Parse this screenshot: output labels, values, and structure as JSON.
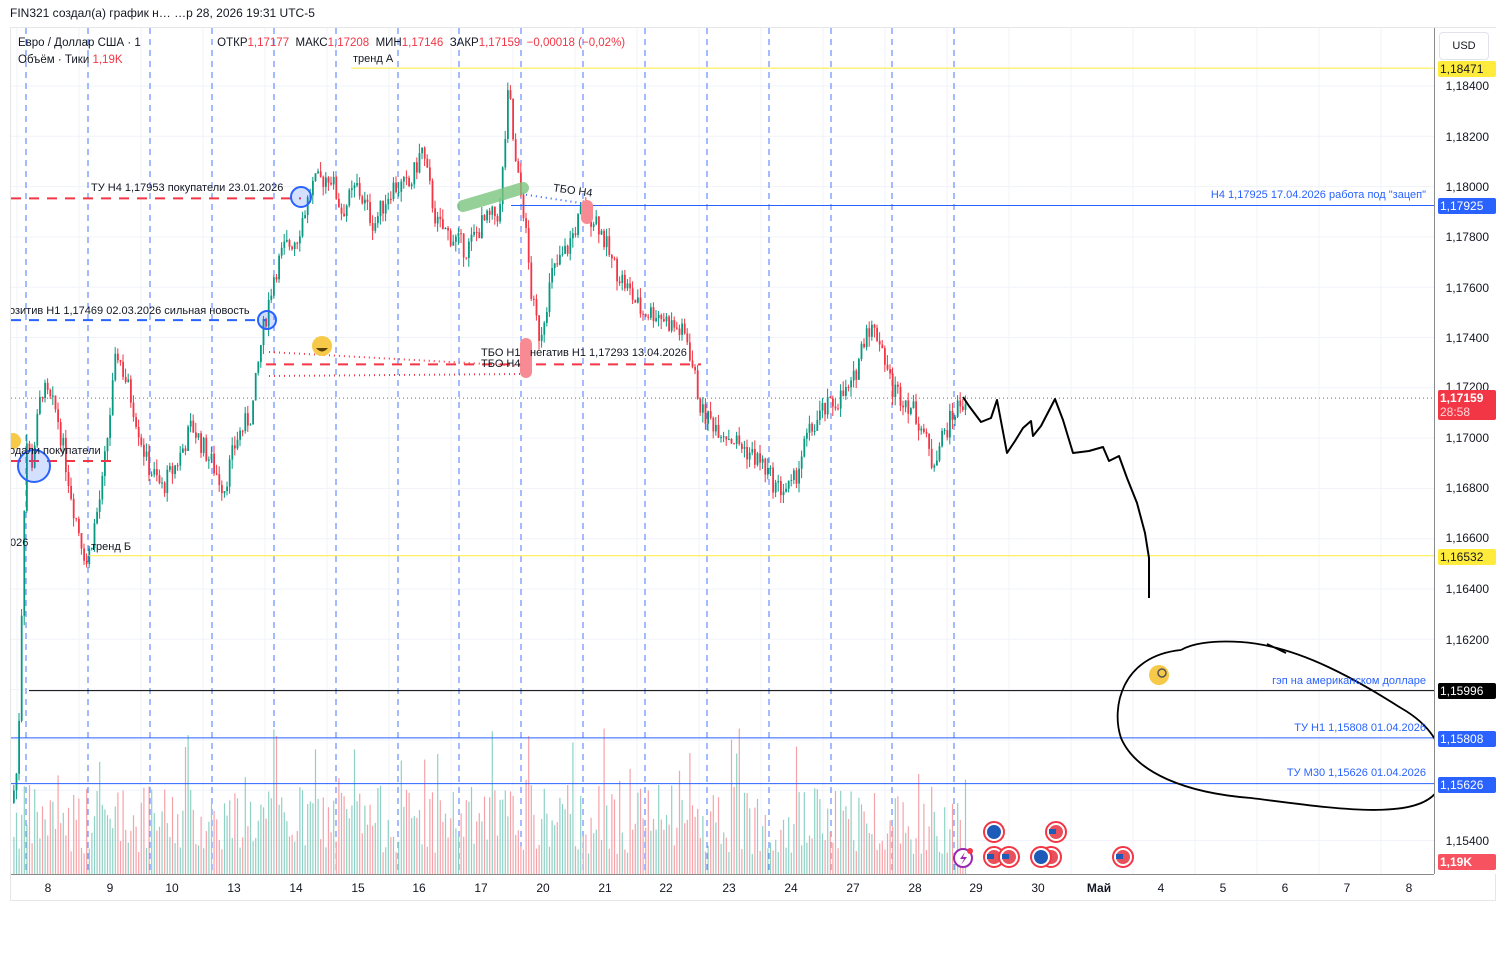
{
  "caption": "FIN321 создал(а) график н… …р 28, 2026 19:31 UTC-5",
  "legend": {
    "symbol": "Евро / Доллар США · 1",
    "open_label": "ОТКР",
    "open": "1,17177",
    "high_label": "МАКС",
    "high": "1,17208",
    "low_label": "МИН",
    "low": "1,17146",
    "close_label": "ЗАКР",
    "close": "1,17159",
    "change": "−0,00018 (−0,02%)",
    "volume_label": "Объём · Тики",
    "volume": "1,19K"
  },
  "currency_button": "USD",
  "price_axis": {
    "ticks": [
      "1,18400",
      "1,18200",
      "1,18000",
      "1,17800",
      "1,17600",
      "1,17400",
      "1,17200",
      "1,17000",
      "1,16800",
      "1,16600",
      "1,16400",
      "1,16200",
      "1,15400"
    ],
    "badges": [
      {
        "value": "1,18471",
        "bg": "#ffeb3b",
        "fg": "#131722"
      },
      {
        "value": "1,17925",
        "bg": "#2962ff",
        "fg": "#ffffff"
      },
      {
        "value": "1,17159",
        "bg": "#f23645",
        "fg": "#ffffff",
        "countdown": "28:58"
      },
      {
        "value": "1,16532",
        "bg": "#ffeb3b",
        "fg": "#131722"
      },
      {
        "value": "1,15996",
        "bg": "#000000",
        "fg": "#ffffff"
      },
      {
        "value": "1,15808",
        "bg": "#2962ff",
        "fg": "#ffffff"
      },
      {
        "value": "1,15626",
        "bg": "#2962ff",
        "fg": "#ffffff"
      },
      {
        "value": "1,19K",
        "bg": "#f7525f",
        "fg": "#ffffff"
      }
    ]
  },
  "time_axis": {
    "ticks": [
      "8",
      "9",
      "10",
      "13",
      "14",
      "15",
      "16",
      "17",
      "20",
      "21",
      "22",
      "23",
      "24",
      "27",
      "28",
      "29",
      "30",
      "Май",
      "4",
      "5",
      "6",
      "7",
      "8"
    ]
  },
  "annotations": {
    "trend_a": "тренд А",
    "trend_b": "тренд Б",
    "tu_h4": "ТУ Н4 1,17953 покупатели 23.01.2026",
    "positive_h1": "озитив Н1 1,17469 02.03.2026 сильная новость",
    "sold_buyers": "одали покупатели",
    "left_date_fragment": "026",
    "tbo_h4_top": "ТБО Н4",
    "tbo_h1": "ТБО Н1",
    "tbo_h4_low": "ТБО Н4",
    "negative_h1": "негатив Н1 1,17293 13.04.2026",
    "h4_zacep": "Н4 1,17925 17.04.2026 работа под \"зацеп\"",
    "gap_usd": "гэп на американском долларе",
    "tu_h1": "ТУ  Н1 1,15808 01.04.2026",
    "tu_m30": "ТУ М30 1,15626 01.04.2026"
  },
  "colors": {
    "up": "#089981",
    "down": "#f23645",
    "vol_up": "#8fd1c4",
    "vol_down": "#f5a3a8",
    "blue": "#2962ff",
    "yellow": "#ffeb3b",
    "grid": "#f0f3fa"
  },
  "chart_data": {
    "type": "candlestick",
    "title": "Евро / Доллар США (EURUSD), 1H",
    "ylabel": "USD",
    "ylim": [
      1.153,
      1.1855
    ],
    "x_categories": [
      "8",
      "9",
      "10",
      "13",
      "14",
      "15",
      "16",
      "17",
      "20",
      "21",
      "22",
      "23",
      "24",
      "27",
      "28"
    ],
    "daily_approx_close": [
      1.1695,
      1.1665,
      1.169,
      1.1725,
      1.1795,
      1.1792,
      1.1805,
      1.1785,
      1.177,
      1.1775,
      1.1735,
      1.1705,
      1.169,
      1.173,
      1.1716
    ],
    "last": {
      "open": 1.17177,
      "high": 1.17208,
      "low": 1.17146,
      "close": 1.17159,
      "change": -0.00018,
      "change_pct": -0.02
    },
    "horizontal_levels": [
      {
        "price": 1.18471,
        "label": "тренд А",
        "color": "#ffeb3b"
      },
      {
        "price": 1.17953,
        "label": "ТУ Н4 покупатели 23.01.2026",
        "color": "#f23645",
        "style": "dashed"
      },
      {
        "price": 1.17925,
        "label": "Н4 17.04.2026 работа под \"зацеп\"",
        "color": "#2962ff"
      },
      {
        "price": 1.17469,
        "label": "позитив Н1 02.03.2026 сильная новость",
        "color": "#2962ff",
        "style": "dashed"
      },
      {
        "price": 1.17293,
        "label": "негатив Н1 13.04.2026",
        "color": "#f23645",
        "style": "dashed"
      },
      {
        "price": 1.16532,
        "label": "тренд Б",
        "color": "#ffeb3b"
      },
      {
        "price": 1.15996,
        "label": "гэп на американском долларе",
        "color": "#000000"
      },
      {
        "price": 1.15808,
        "label": "ТУ Н1 01.04.2026",
        "color": "#2962ff"
      },
      {
        "price": 1.15626,
        "label": "ТУ М30 01.04.2026",
        "color": "#2962ff"
      }
    ],
    "volume_last": "1,19K"
  }
}
